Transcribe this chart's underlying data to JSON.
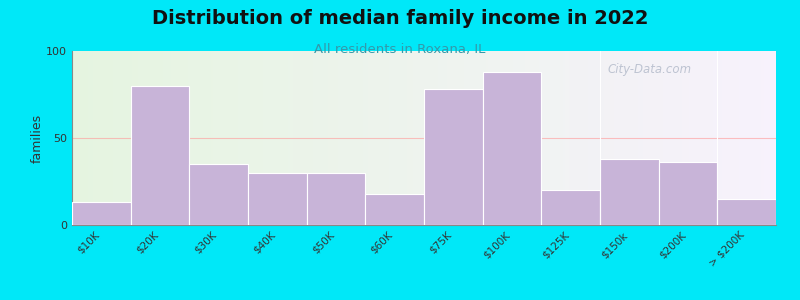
{
  "title": "Distribution of median family income in 2022",
  "subtitle": "All residents in Roxana, IL",
  "categories": [
    "$10K",
    "$20K",
    "$30K",
    "$40K",
    "$50K",
    "$60K",
    "$75K",
    "$100K",
    "$125K",
    "$150k",
    "$200K",
    "> $200K"
  ],
  "values": [
    13,
    80,
    35,
    30,
    30,
    18,
    78,
    88,
    20,
    38,
    36,
    15
  ],
  "bar_color": "#c8b4d8",
  "background_outer": "#00e8f8",
  "title_color": "#111111",
  "subtitle_color": "#3399aa",
  "ylabel": "families",
  "ylim": [
    0,
    100
  ],
  "yticks": [
    0,
    50,
    100
  ],
  "watermark": "City-Data.com",
  "grid_color": "#ff9999",
  "grid_alpha": 0.6,
  "title_fontsize": 14,
  "subtitle_fontsize": 9.5
}
